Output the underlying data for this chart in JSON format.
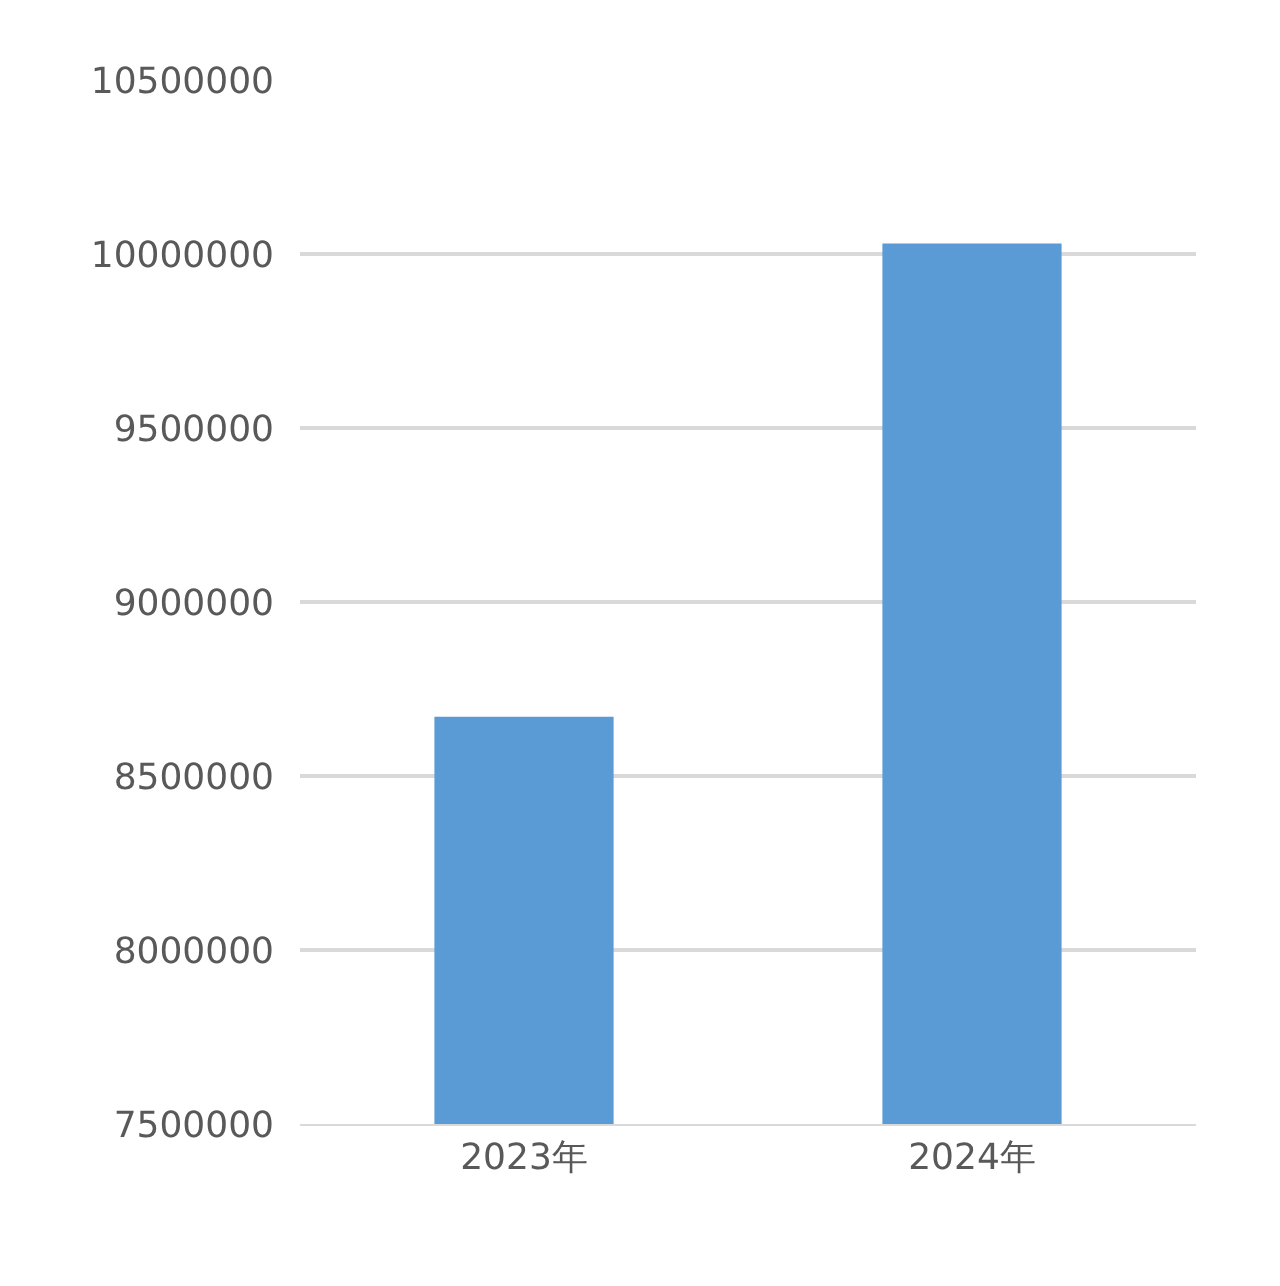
{
  "chart_data": {
    "type": "bar",
    "categories": [
      "2023年",
      "2024年"
    ],
    "values": [
      8670000,
      10030000
    ],
    "color": "#5b9bd5",
    "ylim": [
      7500000,
      10500000
    ],
    "yticks": [
      7500000,
      8000000,
      8500000,
      9000000,
      9500000,
      10000000,
      10500000
    ],
    "grid": "y",
    "legend": false
  }
}
